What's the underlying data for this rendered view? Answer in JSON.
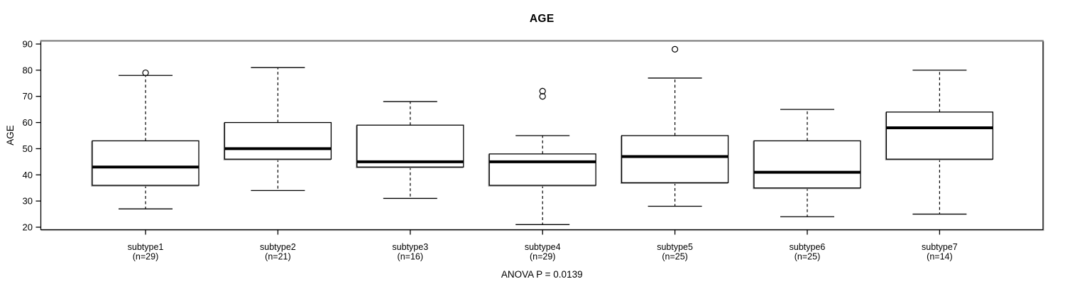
{
  "title": "AGE",
  "y_axis": {
    "label": "AGE"
  },
  "footer": {
    "annotation": "ANOVA P = 0.0139"
  },
  "colors": {
    "foreground": "#000000",
    "background": "#ffffff",
    "panel_top_border": "#808080",
    "shadow": "#bdbdbd"
  },
  "chart_data": {
    "type": "boxplot",
    "title": "AGE",
    "ylabel": "AGE",
    "xlabel": "",
    "ylim": [
      18,
      92
    ],
    "yticks": [
      20,
      30,
      40,
      50,
      60,
      70,
      80,
      90
    ],
    "grid": false,
    "legend": "none",
    "annotation": "ANOVA P = 0.0139",
    "groups": [
      {
        "label": "subtype1",
        "n_label": "(n=29)",
        "n": 29,
        "whisker_low": 27,
        "q1": 36,
        "median": 43,
        "q3": 53,
        "whisker_high": 78,
        "outliers": [
          79
        ]
      },
      {
        "label": "subtype2",
        "n_label": "(n=21)",
        "n": 21,
        "whisker_low": 34,
        "q1": 46,
        "median": 50,
        "q3": 60,
        "whisker_high": 81,
        "outliers": []
      },
      {
        "label": "subtype3",
        "n_label": "(n=16)",
        "n": 16,
        "whisker_low": 31,
        "q1": 43,
        "median": 45,
        "q3": 59,
        "whisker_high": 68,
        "outliers": []
      },
      {
        "label": "subtype4",
        "n_label": "(n=29)",
        "n": 29,
        "whisker_low": 21,
        "q1": 36,
        "median": 45,
        "q3": 48,
        "whisker_high": 55,
        "outliers": [
          70,
          72
        ]
      },
      {
        "label": "subtype5",
        "n_label": "(n=25)",
        "n": 25,
        "whisker_low": 28,
        "q1": 37,
        "median": 47,
        "q3": 55,
        "whisker_high": 77,
        "outliers": [
          88
        ]
      },
      {
        "label": "subtype6",
        "n_label": "(n=25)",
        "n": 25,
        "whisker_low": 24,
        "q1": 35,
        "median": 41,
        "q3": 53,
        "whisker_high": 65,
        "outliers": []
      },
      {
        "label": "subtype7",
        "n_label": "(n=14)",
        "n": 14,
        "whisker_low": 25,
        "q1": 46,
        "median": 58,
        "q3": 64,
        "whisker_high": 80,
        "outliers": []
      }
    ]
  }
}
